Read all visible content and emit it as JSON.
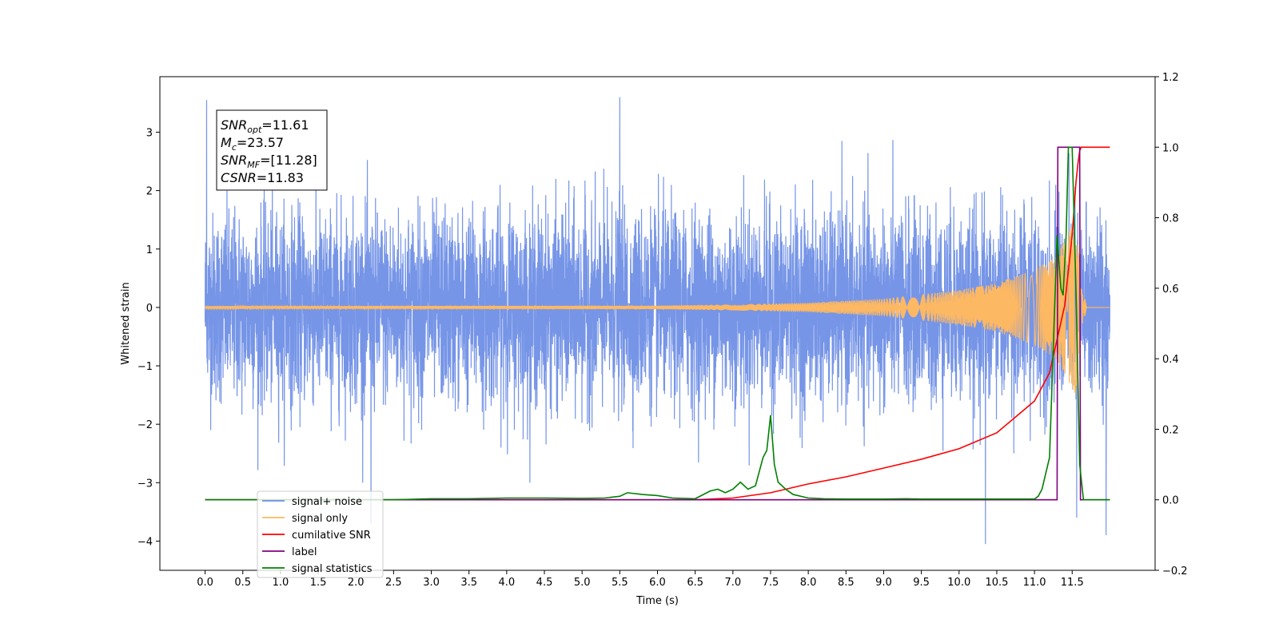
{
  "chart_data": {
    "type": "line",
    "xlabel": "Time (s)",
    "ylabel": "Whitened strain",
    "xlim": [
      -0.6,
      12.6
    ],
    "ylim": [
      -4.5,
      3.95
    ],
    "y2lim": [
      -0.2,
      1.2
    ],
    "x_ticks": [
      "0.0",
      "0.5",
      "1.0",
      "1.5",
      "2.0",
      "2.5",
      "3.0",
      "3.5",
      "4.0",
      "4.5",
      "5.0",
      "5.5",
      "6.0",
      "6.5",
      "7.0",
      "7.5",
      "8.0",
      "8.5",
      "9.0",
      "9.5",
      "10.0",
      "10.5",
      "11.0",
      "11.5"
    ],
    "y_ticks": [
      3,
      2,
      1,
      0,
      -1,
      -2,
      -3,
      -4
    ],
    "y2_ticks": [
      -0.2,
      0.0,
      0.2,
      0.4,
      0.6,
      0.8,
      1.0,
      1.2
    ],
    "y_tick_labels": [
      "3",
      "2",
      "1",
      "0",
      "−1",
      "−2",
      "−3",
      "−4"
    ],
    "y2_tick_labels": [
      "−0.2",
      "0.0",
      "0.2",
      "0.4",
      "0.6",
      "0.8",
      "1.0",
      "1.2"
    ],
    "annotation": {
      "lines": [
        {
          "base": "SNR",
          "sub": "opt",
          "value": "=11.61"
        },
        {
          "base": "M",
          "sub": "c",
          "value": "=23.57"
        },
        {
          "base": "SNR",
          "sub": "MF",
          "value": "=[11.28]"
        },
        {
          "base": "CSNR",
          "sub": "",
          "value": "=11.83"
        }
      ]
    },
    "legend": {
      "placement": "lower-left",
      "entries": [
        "signal+ noise",
        "signal only",
        "cumilative SNR",
        "label",
        "signal statistics"
      ],
      "colors": [
        "#6f8fe6",
        "#fdb863",
        "#ff0000",
        "#800080",
        "#008000"
      ]
    },
    "series": [
      {
        "name": "signal+ noise",
        "axis": "left",
        "color": "#6f8fe6",
        "x_range": [
          0.0,
          12.0
        ],
        "noise_sigma": 0.8,
        "extremes": [
          [
            0.02,
            3.55
          ],
          [
            5.5,
            3.6
          ],
          [
            10.35,
            -4.05
          ],
          [
            11.95,
            -3.9
          ],
          [
            11.56,
            -3.6
          ],
          [
            2.2,
            -3.7
          ]
        ]
      },
      {
        "name": "signal only",
        "axis": "left",
        "color": "#fdb863",
        "x_range": [
          0.0,
          12.0
        ],
        "envelope": [
          [
            0,
            0.02
          ],
          [
            6.0,
            0.03
          ],
          [
            7.0,
            0.05
          ],
          [
            8.0,
            0.08
          ],
          [
            9.0,
            0.15
          ],
          [
            10.0,
            0.3
          ],
          [
            10.5,
            0.42
          ],
          [
            11.0,
            0.65
          ],
          [
            11.3,
            0.9
          ],
          [
            11.45,
            1.3
          ],
          [
            11.55,
            1.5
          ],
          [
            11.62,
            0.4
          ],
          [
            11.7,
            0.0
          ],
          [
            12.0,
            0.0
          ]
        ]
      },
      {
        "name": "cumilative SNR",
        "axis": "right",
        "color": "#ff0000",
        "x": [
          0.0,
          6.5,
          7.0,
          7.5,
          8.0,
          8.5,
          9.0,
          9.5,
          10.0,
          10.5,
          11.0,
          11.2,
          11.4,
          11.5,
          11.55,
          11.58,
          11.6,
          11.62,
          12.0
        ],
        "y": [
          0.0,
          0.0,
          0.005,
          0.02,
          0.045,
          0.065,
          0.09,
          0.115,
          0.145,
          0.19,
          0.28,
          0.36,
          0.55,
          0.75,
          0.9,
          0.96,
          0.99,
          1.0,
          1.0
        ]
      },
      {
        "name": "label",
        "axis": "right",
        "color": "#800080",
        "x": [
          0.0,
          11.3,
          11.31,
          11.6,
          11.61,
          12.0
        ],
        "y": [
          0.0,
          0.0,
          1.0,
          1.0,
          0.0,
          0.0
        ]
      },
      {
        "name": "signal statistics",
        "axis": "right",
        "color": "#008000",
        "x": [
          0.0,
          2.5,
          3.0,
          3.5,
          4.0,
          4.5,
          5.0,
          5.3,
          5.5,
          5.6,
          5.8,
          6.0,
          6.2,
          6.5,
          6.7,
          6.8,
          6.9,
          7.0,
          7.1,
          7.2,
          7.3,
          7.4,
          7.45,
          7.5,
          7.55,
          7.6,
          7.7,
          7.8,
          8.0,
          8.2,
          8.5,
          9.0,
          9.3,
          9.5,
          10.0,
          11.0,
          11.05,
          11.1,
          11.2,
          11.3,
          11.35,
          11.38,
          11.42,
          11.45,
          11.5,
          11.55,
          11.6,
          11.65,
          11.7,
          12.0
        ],
        "y": [
          0.0,
          0.0,
          0.003,
          0.003,
          0.005,
          0.005,
          0.004,
          0.005,
          0.01,
          0.02,
          0.015,
          0.012,
          0.005,
          0.003,
          0.025,
          0.03,
          0.02,
          0.03,
          0.05,
          0.03,
          0.04,
          0.12,
          0.14,
          0.24,
          0.1,
          0.05,
          0.03,
          0.015,
          0.005,
          0.003,
          0.002,
          0.002,
          0.003,
          0.002,
          0.002,
          0.002,
          0.01,
          0.03,
          0.12,
          0.75,
          0.6,
          0.58,
          0.75,
          1.0,
          1.0,
          0.6,
          0.1,
          0.0,
          0.0,
          0.0
        ]
      }
    ]
  }
}
